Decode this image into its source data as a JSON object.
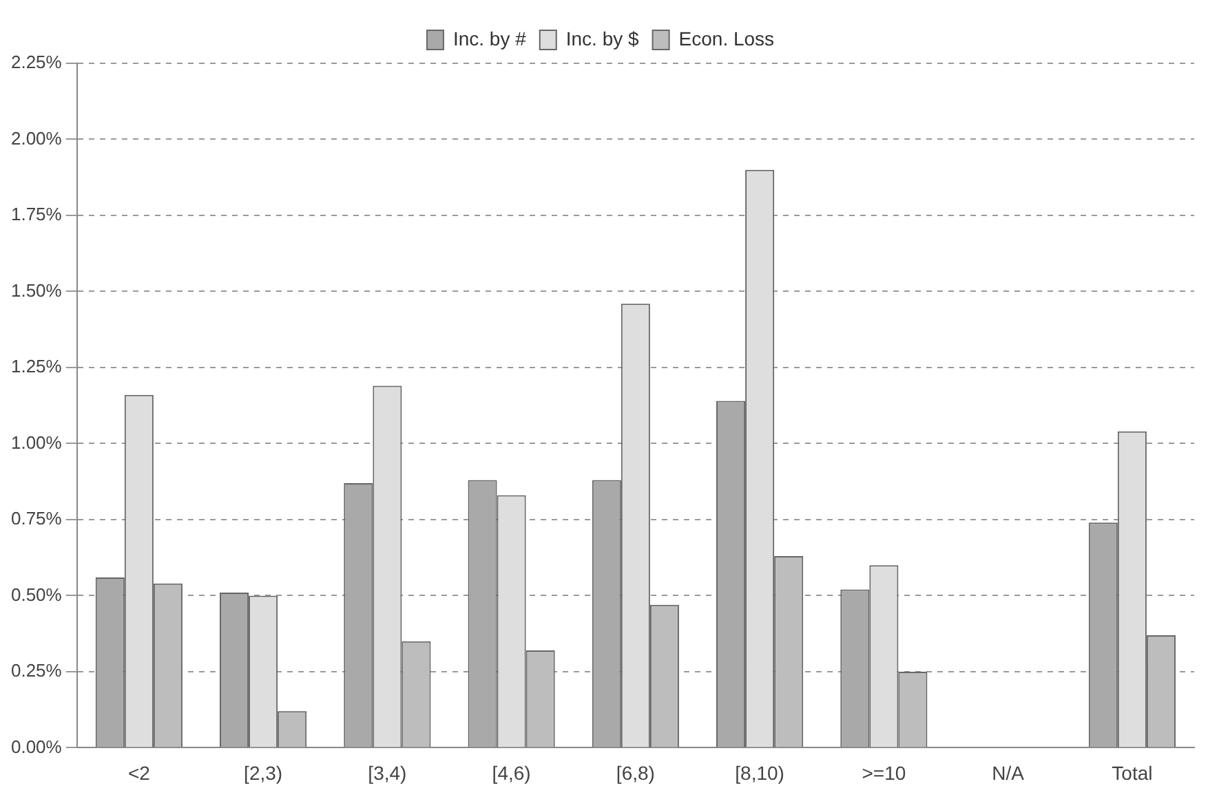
{
  "chart_data": {
    "type": "bar",
    "categories": [
      "<2",
      "[2,3)",
      "[3,4)",
      "[4,6)",
      "[6,8)",
      "[8,10)",
      ">=10",
      "N/A",
      "Total"
    ],
    "series": [
      {
        "name": "Inc. by #",
        "color": "#a9a9a9",
        "values": [
          0.56,
          0.51,
          0.87,
          0.88,
          0.88,
          1.14,
          0.52,
          null,
          0.74
        ]
      },
      {
        "name": "Inc. by $",
        "color": "#dedede",
        "values": [
          1.16,
          0.5,
          1.19,
          0.83,
          1.46,
          1.9,
          0.6,
          null,
          1.04
        ]
      },
      {
        "name": "Econ. Loss",
        "color": "#bdbdbd",
        "values": [
          0.54,
          0.12,
          0.35,
          0.32,
          0.47,
          0.63,
          0.25,
          null,
          0.37
        ]
      }
    ],
    "ylim": [
      0,
      2.25
    ],
    "yticks": [
      {
        "value": 0,
        "label": "0.00%"
      },
      {
        "value": 0.25,
        "label": "0.25%"
      },
      {
        "value": 0.5,
        "label": "0.50%"
      },
      {
        "value": 0.75,
        "label": "0.75%"
      },
      {
        "value": 1,
        "label": "1.00%"
      },
      {
        "value": 1.25,
        "label": "1.25%"
      },
      {
        "value": 1.5,
        "label": "1.50%"
      },
      {
        "value": 1.75,
        "label": "1.75%"
      },
      {
        "value": 2,
        "label": "2.00%"
      },
      {
        "value": 2.25,
        "label": "2.25%"
      }
    ],
    "grid": "y",
    "legend": "top"
  }
}
